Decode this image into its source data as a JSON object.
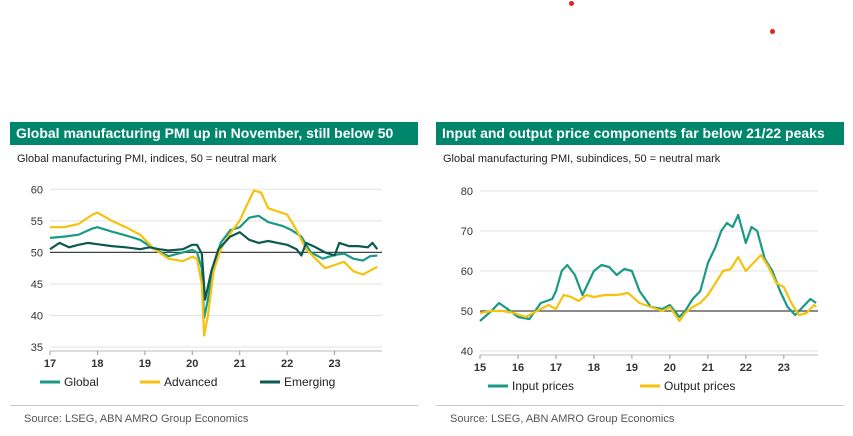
{
  "colors": {
    "teal": "#1a9a84",
    "gold": "#f5c20f",
    "dark_teal": "#0c5a4f",
    "header_bg": "#00866b",
    "red_dot": "#e2231a"
  },
  "left": {
    "title": "Global manufacturing PMI up in November, still below 50",
    "subtitle": "Global manufacturing PMI, indices, 50 = neutral mark",
    "source": "Source: LSEG, ABN AMRO Group Economics"
  },
  "right": {
    "title": "Input and output price components far below 21/22 peaks",
    "subtitle": "Global manufacturing PMI, subindices, 50 = neutral mark",
    "source": "Source: LSEG, ABN AMRO Group Economics"
  },
  "chart_data": [
    {
      "type": "line",
      "x_ticks": [
        "17",
        "18",
        "19",
        "20",
        "21",
        "22",
        "23"
      ],
      "y_ticks": [
        "35",
        "40",
        "45",
        "50",
        "55",
        "60"
      ],
      "ylim": [
        35,
        61
      ],
      "xlim": [
        2017.0,
        2024.0
      ],
      "reference_line": 50,
      "grid": true,
      "legend": "bottom",
      "series": [
        {
          "name": "Global",
          "color": "#1a9a84",
          "x": [
            2017.0,
            2017.3,
            2017.6,
            2017.9,
            2018.0,
            2018.3,
            2018.6,
            2018.9,
            2019.2,
            2019.5,
            2019.8,
            2020.0,
            2020.1,
            2020.2,
            2020.25,
            2020.33,
            2020.45,
            2020.6,
            2020.8,
            2021.0,
            2021.2,
            2021.4,
            2021.6,
            2021.9,
            2022.1,
            2022.3,
            2022.5,
            2022.75,
            2023.0,
            2023.2,
            2023.4,
            2023.6,
            2023.75,
            2023.9
          ],
          "values": [
            52.3,
            52.5,
            52.8,
            53.8,
            54.0,
            53.3,
            52.7,
            52.0,
            50.5,
            49.4,
            50.0,
            50.4,
            50.0,
            47.5,
            39.6,
            42.5,
            48.0,
            51.5,
            53.5,
            54.0,
            55.5,
            55.8,
            54.8,
            54.2,
            53.5,
            52.5,
            50.0,
            49.0,
            49.6,
            49.8,
            49.0,
            48.7,
            49.4,
            49.5
          ]
        },
        {
          "name": "Advanced",
          "color": "#f5c20f",
          "x": [
            2017.0,
            2017.3,
            2017.6,
            2017.9,
            2018.0,
            2018.3,
            2018.6,
            2018.9,
            2019.2,
            2019.5,
            2019.8,
            2020.0,
            2020.1,
            2020.2,
            2020.25,
            2020.33,
            2020.45,
            2020.6,
            2020.8,
            2021.0,
            2021.15,
            2021.3,
            2021.45,
            2021.6,
            2021.8,
            2022.0,
            2022.2,
            2022.4,
            2022.6,
            2022.8,
            2023.0,
            2023.2,
            2023.4,
            2023.6,
            2023.8,
            2023.9
          ],
          "values": [
            54.0,
            54.0,
            54.5,
            56.0,
            56.3,
            55.0,
            54.0,
            52.8,
            50.5,
            49.0,
            48.6,
            49.3,
            49.0,
            45.0,
            36.8,
            40.0,
            47.0,
            50.5,
            53.0,
            55.0,
            57.5,
            59.8,
            59.5,
            57.0,
            56.5,
            56.0,
            53.5,
            50.5,
            49.0,
            47.5,
            48.0,
            48.5,
            47.0,
            46.5,
            47.3,
            47.7
          ]
        },
        {
          "name": "Emerging",
          "color": "#0c5a4f",
          "x": [
            2017.0,
            2017.2,
            2017.4,
            2017.6,
            2017.8,
            2018.0,
            2018.3,
            2018.6,
            2018.9,
            2019.1,
            2019.3,
            2019.5,
            2019.8,
            2020.0,
            2020.1,
            2020.2,
            2020.27,
            2020.4,
            2020.55,
            2020.8,
            2021.0,
            2021.2,
            2021.4,
            2021.6,
            2021.8,
            2022.0,
            2022.2,
            2022.3,
            2022.4,
            2022.6,
            2022.8,
            2023.0,
            2023.1,
            2023.3,
            2023.5,
            2023.7,
            2023.8,
            2023.9
          ],
          "values": [
            50.5,
            51.5,
            50.8,
            51.2,
            51.5,
            51.3,
            51.0,
            50.8,
            50.5,
            50.8,
            50.5,
            50.3,
            50.5,
            51.2,
            51.2,
            49.8,
            42.5,
            47.0,
            50.5,
            52.5,
            53.2,
            52.0,
            51.5,
            51.8,
            51.5,
            51.2,
            50.5,
            49.5,
            51.5,
            50.8,
            50.0,
            49.5,
            51.5,
            51.0,
            51.0,
            50.8,
            51.5,
            50.5
          ]
        }
      ]
    },
    {
      "type": "line",
      "x_ticks": [
        "15",
        "16",
        "17",
        "18",
        "19",
        "20",
        "21",
        "22",
        "23"
      ],
      "y_ticks": [
        "40",
        "50",
        "60",
        "70",
        "80"
      ],
      "ylim": [
        40,
        81
      ],
      "xlim": [
        2015.0,
        2023.9
      ],
      "reference_line": 50,
      "grid": true,
      "legend": "bottom",
      "series": [
        {
          "name": "Input prices",
          "color": "#1a9a84",
          "x": [
            2015.0,
            2015.3,
            2015.5,
            2015.8,
            2016.0,
            2016.3,
            2016.6,
            2016.9,
            2017.0,
            2017.15,
            2017.3,
            2017.5,
            2017.7,
            2018.0,
            2018.2,
            2018.4,
            2018.6,
            2018.8,
            2019.0,
            2019.2,
            2019.5,
            2019.8,
            2020.0,
            2020.25,
            2020.4,
            2020.6,
            2020.8,
            2021.0,
            2021.2,
            2021.35,
            2021.5,
            2021.65,
            2021.8,
            2022.0,
            2022.15,
            2022.3,
            2022.5,
            2022.7,
            2022.9,
            2023.1,
            2023.3,
            2023.5,
            2023.7,
            2023.85
          ],
          "values": [
            47.5,
            50.0,
            52.0,
            50.0,
            48.5,
            48.0,
            52.0,
            53.0,
            55.0,
            60.0,
            61.5,
            59.0,
            54.0,
            60.0,
            61.5,
            61.0,
            59.0,
            60.5,
            60.0,
            55.0,
            51.0,
            50.5,
            51.5,
            48.5,
            50.0,
            53.0,
            55.0,
            62.0,
            66.0,
            70.0,
            72.0,
            71.0,
            74.0,
            67.0,
            71.0,
            70.0,
            63.0,
            60.0,
            55.0,
            51.0,
            49.0,
            51.0,
            53.0,
            52.0
          ]
        },
        {
          "name": "Output prices",
          "color": "#f5c20f",
          "x": [
            2015.0,
            2015.3,
            2015.6,
            2015.9,
            2016.2,
            2016.5,
            2016.8,
            2017.0,
            2017.2,
            2017.4,
            2017.6,
            2017.8,
            2018.0,
            2018.3,
            2018.6,
            2018.9,
            2019.2,
            2019.5,
            2019.8,
            2020.0,
            2020.25,
            2020.4,
            2020.6,
            2020.8,
            2021.0,
            2021.2,
            2021.4,
            2021.6,
            2021.8,
            2022.0,
            2022.2,
            2022.4,
            2022.6,
            2022.8,
            2023.0,
            2023.2,
            2023.4,
            2023.6,
            2023.8,
            2023.85
          ],
          "values": [
            49.5,
            50.0,
            50.0,
            49.5,
            48.5,
            50.0,
            51.5,
            50.5,
            54.0,
            53.5,
            52.5,
            54.0,
            53.5,
            54.0,
            54.0,
            54.5,
            52.0,
            51.0,
            50.0,
            51.0,
            47.5,
            49.5,
            51.0,
            52.0,
            54.0,
            57.0,
            60.0,
            60.5,
            63.5,
            60.0,
            62.0,
            64.0,
            61.0,
            57.0,
            56.0,
            52.0,
            49.0,
            49.5,
            51.5,
            51.0
          ]
        }
      ]
    }
  ]
}
